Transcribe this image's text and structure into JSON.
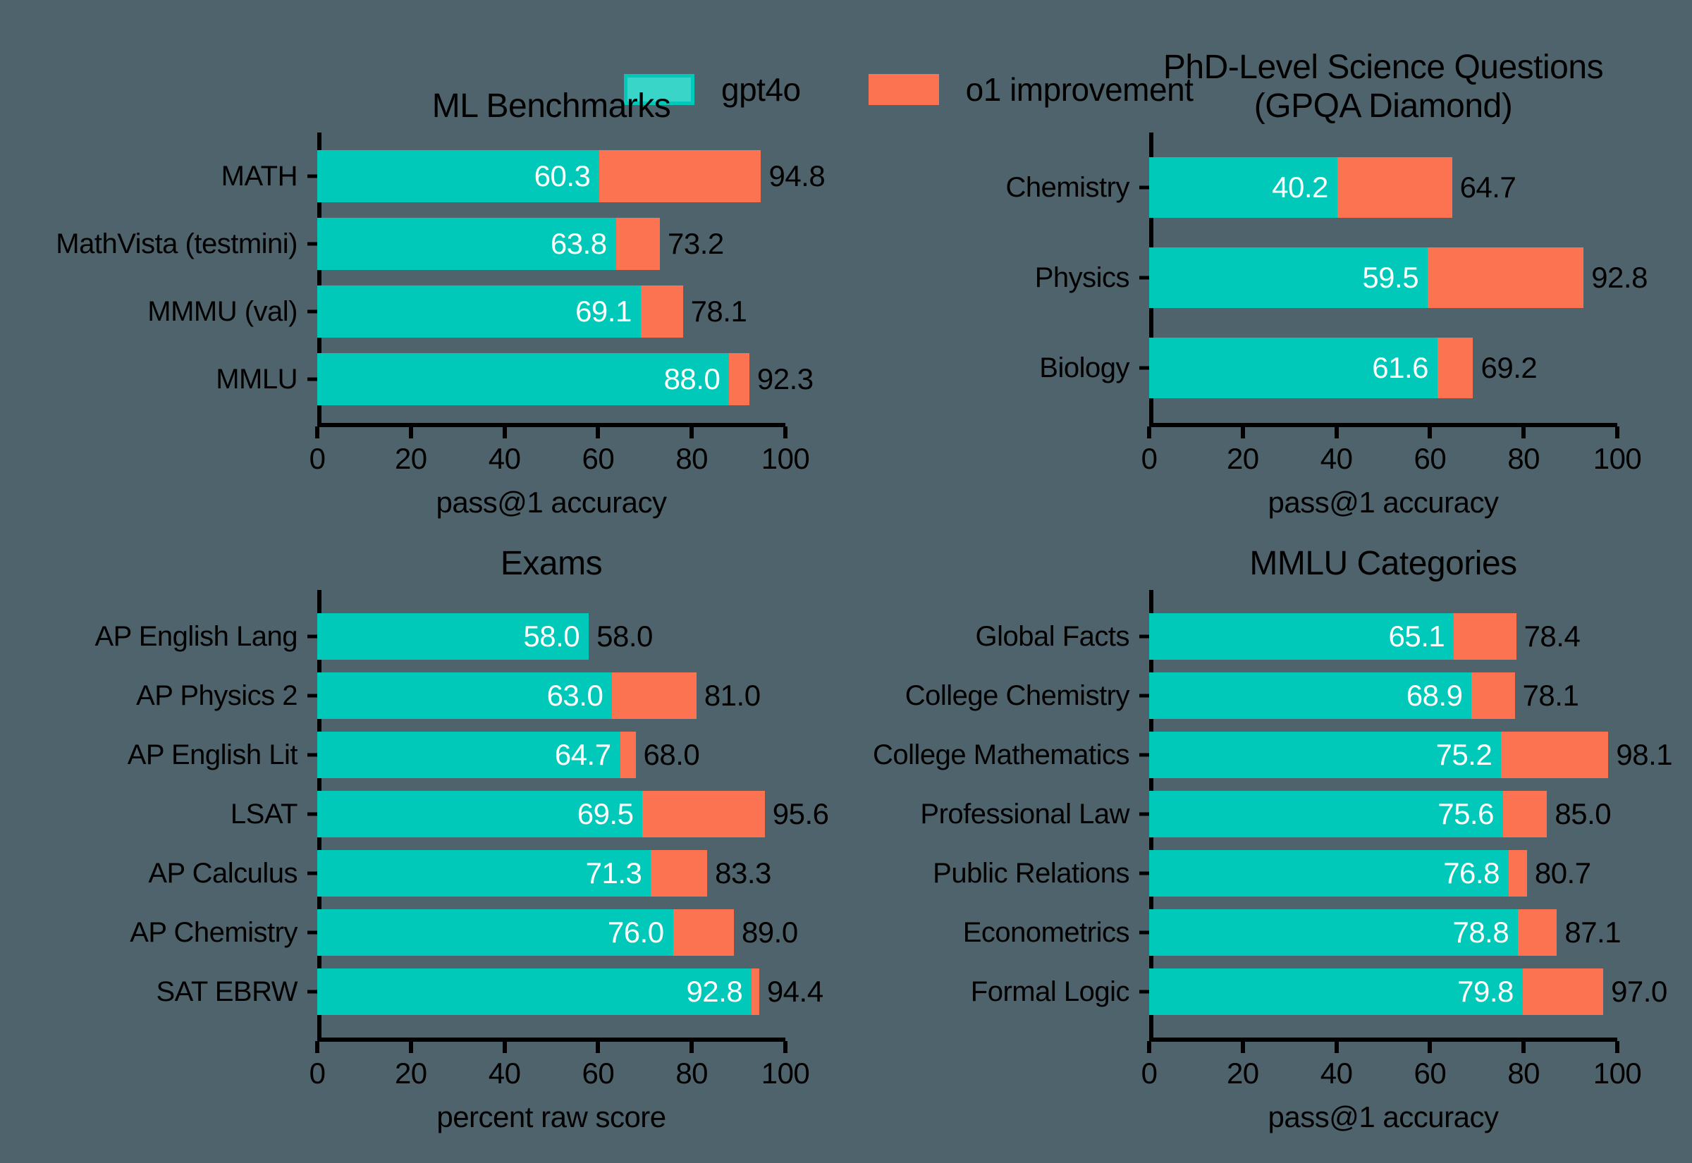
{
  "colors": {
    "background": "#4e636b",
    "bar_base_teal": "#00c9ba",
    "bar_improvement_orange": "#fb7350",
    "legend_teal_fill": "#39d5c8",
    "axis": "#000000",
    "value_label_inside": "#ffffff",
    "value_label_outside": "#000000"
  },
  "legend": {
    "items": [
      {
        "label": "gpt4o",
        "color": "#00c9ba"
      },
      {
        "label": "o1 improvement",
        "color": "#fb7350"
      }
    ]
  },
  "chart_data": [
    {
      "type": "bar",
      "orientation": "horizontal",
      "id": "ml-benchmarks",
      "title": "ML Benchmarks",
      "xlabel": "pass@1 accuracy",
      "xlim": [
        0,
        100
      ],
      "xticks": [
        0,
        20,
        40,
        60,
        80,
        100
      ],
      "grid": false,
      "note": "Stacked bars: teal = gpt4o score, orange = o1 improvement up to total; second series values are o1 totals",
      "categories": [
        "MATH",
        "MathVista (testmini)",
        "MMMU (val)",
        "MMLU"
      ],
      "series": [
        {
          "name": "gpt4o",
          "values": [
            60.3,
            63.8,
            69.1,
            88.0
          ]
        },
        {
          "name": "o1 total",
          "values": [
            94.8,
            73.2,
            78.1,
            92.3
          ]
        }
      ]
    },
    {
      "type": "bar",
      "orientation": "horizontal",
      "id": "gpqa-diamond",
      "title": "PhD-Level Science Questions\n(GPQA Diamond)",
      "xlabel": "pass@1 accuracy",
      "xlim": [
        0,
        100
      ],
      "xticks": [
        0,
        20,
        40,
        60,
        80,
        100
      ],
      "grid": false,
      "categories": [
        "Chemistry",
        "Physics",
        "Biology"
      ],
      "series": [
        {
          "name": "gpt4o",
          "values": [
            40.2,
            59.5,
            61.6
          ]
        },
        {
          "name": "o1 total",
          "values": [
            64.7,
            92.8,
            69.2
          ]
        }
      ]
    },
    {
      "type": "bar",
      "orientation": "horizontal",
      "id": "exams",
      "title": "Exams",
      "xlabel": "percent raw score",
      "xlim": [
        0,
        100
      ],
      "xticks": [
        0,
        20,
        40,
        60,
        80,
        100
      ],
      "grid": false,
      "categories": [
        "AP English Lang",
        "AP Physics 2",
        "AP English Lit",
        "LSAT",
        "AP Calculus",
        "AP Chemistry",
        "SAT EBRW"
      ],
      "series": [
        {
          "name": "gpt4o",
          "values": [
            58.0,
            63.0,
            64.7,
            69.5,
            71.3,
            76.0,
            92.8
          ]
        },
        {
          "name": "o1 total",
          "values": [
            58.0,
            81.0,
            68.0,
            95.6,
            83.3,
            89.0,
            94.4
          ]
        }
      ]
    },
    {
      "type": "bar",
      "orientation": "horizontal",
      "id": "mmlu-categories",
      "title": "MMLU Categories",
      "xlabel": "pass@1 accuracy",
      "xlim": [
        0,
        100
      ],
      "xticks": [
        0,
        20,
        40,
        60,
        80,
        100
      ],
      "grid": false,
      "categories": [
        "Global Facts",
        "College Chemistry",
        "College Mathematics",
        "Professional Law",
        "Public Relations",
        "Econometrics",
        "Formal Logic"
      ],
      "series": [
        {
          "name": "gpt4o",
          "values": [
            65.1,
            68.9,
            75.2,
            75.6,
            76.8,
            78.8,
            79.8
          ]
        },
        {
          "name": "o1 total",
          "values": [
            78.4,
            78.1,
            98.1,
            85.0,
            80.7,
            87.1,
            97.0
          ]
        }
      ]
    }
  ]
}
